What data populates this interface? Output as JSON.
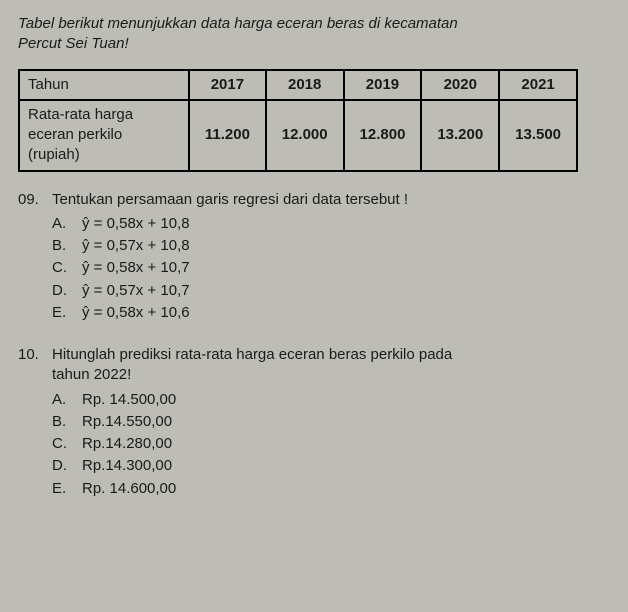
{
  "intro_line1": "Tabel berikut menunjukkan data harga eceran beras di kecamatan",
  "intro_line2": "Percut Sei Tuan!",
  "table": {
    "header": [
      "Tahun",
      "2017",
      "2018",
      "2019",
      "2020",
      "2021"
    ],
    "row_label_l1": "Rata-rata harga",
    "row_label_l2": "eceran perkilo",
    "row_label_l3": "(rupiah)",
    "values": [
      "11.200",
      "12.000",
      "12.800",
      "13.200",
      "13.500"
    ]
  },
  "q09": {
    "num": "09.",
    "stem": "Tentukan persamaan garis regresi dari data tersebut !",
    "opts": [
      {
        "label": "A.",
        "text": "ŷ  = 0,58x + 10,8"
      },
      {
        "label": "B.",
        "text": "ŷ  = 0,57x + 10,8"
      },
      {
        "label": "C.",
        "text": "ŷ  = 0,58x + 10,7"
      },
      {
        "label": "D.",
        "text": "ŷ  = 0,57x + 10,7"
      },
      {
        "label": "E.",
        "text": "ŷ  = 0,58x + 10,6"
      }
    ]
  },
  "q10": {
    "num": "10.",
    "stem_l1": "Hitunglah prediksi rata-rata harga eceran beras perkilo pada",
    "stem_l2": "tahun 2022!",
    "opts": [
      {
        "label": "A.",
        "text": "Rp. 14.500,00"
      },
      {
        "label": "B.",
        "text": "Rp.14.550,00"
      },
      {
        "label": "C.",
        "text": "Rp.14.280,00"
      },
      {
        "label": "D.",
        "text": "Rp.14.300,00"
      },
      {
        "label": "E.",
        "text": "Rp. 14.600,00"
      }
    ]
  }
}
